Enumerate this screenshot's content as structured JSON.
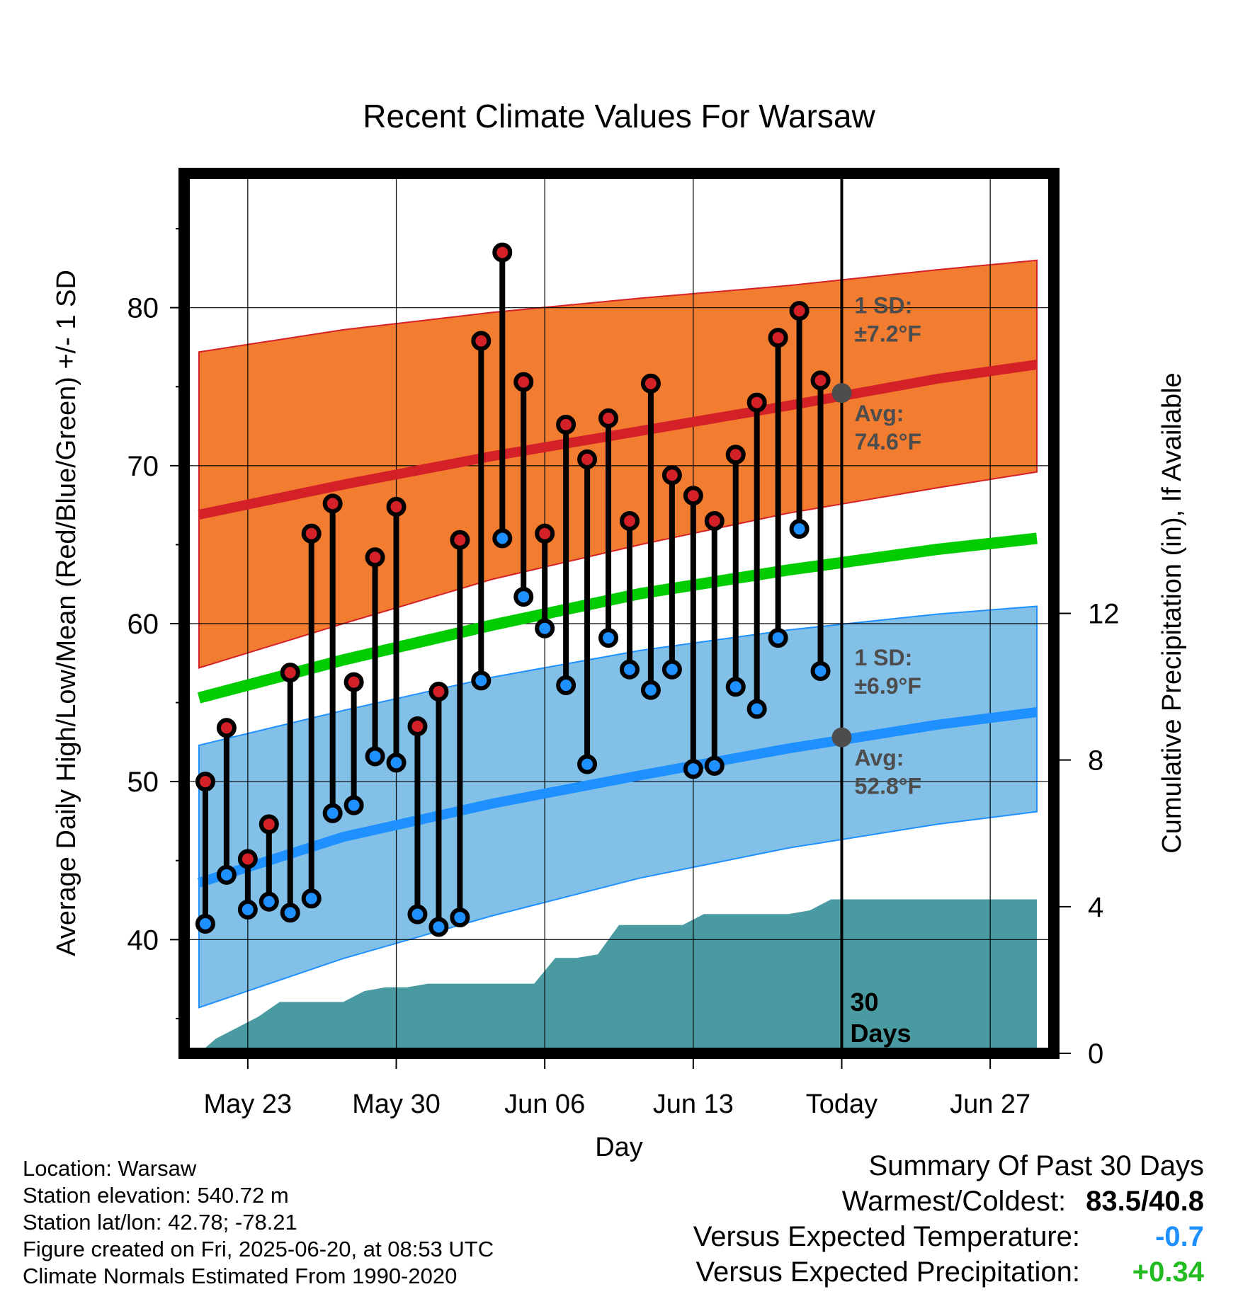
{
  "chart_data": {
    "type": "line",
    "title": "Recent Climate Values For Warsaw",
    "xlabel": "Day",
    "ylabel_left": "Average Daily High/Low/Mean (Red/Blue/Green) +/- 1 SD",
    "ylabel_right": "Cumulative Precipitation (in), If Available",
    "x_ticks": [
      {
        "day": 2,
        "label": "May 23"
      },
      {
        "day": 9,
        "label": "May 30"
      },
      {
        "day": 16,
        "label": "Jun 06"
      },
      {
        "day": 23,
        "label": "Jun 13"
      },
      {
        "day": 30,
        "label": "Today"
      },
      {
        "day": 37,
        "label": "Jun 27"
      }
    ],
    "xlim": [
      -1,
      40
    ],
    "today_day": 30,
    "y_ticks": [
      40,
      50,
      60,
      70,
      80
    ],
    "ylim": [
      32.8,
      88.5
    ],
    "y2_ticks": [
      0,
      4,
      8,
      12
    ],
    "y2lim": [
      0,
      24
    ],
    "today_label": "30 Days",
    "normal_high": {
      "days": [
        -0.3,
        6.5,
        13.5,
        20.5,
        27.5,
        34.5,
        39.2
      ],
      "mean": [
        66.9,
        68.8,
        70.6,
        72.2,
        73.8,
        75.5,
        76.4
      ],
      "upper": [
        77.2,
        78.6,
        79.7,
        80.6,
        81.4,
        82.4,
        83.0
      ],
      "lower": [
        57.2,
        60.0,
        62.8,
        65.0,
        67.0,
        68.6,
        69.6
      ],
      "label_sd": "1 SD:",
      "label_sd_value": "±7.2°F",
      "label_avg": "Avg:",
      "label_avg_value": "74.6°F",
      "today_value": 74.6
    },
    "normal_low": {
      "days": [
        -0.3,
        6.5,
        13.5,
        20.5,
        27.5,
        34.5,
        39.2
      ],
      "mean": [
        43.6,
        46.5,
        48.6,
        50.4,
        52.1,
        53.6,
        54.4
      ],
      "upper": [
        52.3,
        54.5,
        56.6,
        58.3,
        59.6,
        60.6,
        61.1
      ],
      "lower": [
        35.7,
        38.8,
        41.5,
        43.9,
        45.8,
        47.3,
        48.1
      ],
      "label_sd": "1 SD:",
      "label_sd_value": "±6.9°F",
      "label_avg": "Avg:",
      "label_avg_value": "52.8°F",
      "today_value": 52.8
    },
    "normal_mean": {
      "days": [
        -0.3,
        6.5,
        13.5,
        20.5,
        27.5,
        34.5,
        39.2
      ],
      "values": [
        55.3,
        57.7,
        59.9,
        61.9,
        63.4,
        64.7,
        65.4
      ]
    },
    "series": [
      {
        "name": "High",
        "days": [
          0,
          1,
          2,
          3,
          4,
          5,
          6,
          7,
          8,
          9,
          10,
          11,
          12,
          13,
          14,
          15,
          16,
          17,
          18,
          19,
          20,
          21,
          22,
          23,
          24,
          25,
          26,
          27,
          28,
          29
        ],
        "values": [
          50.0,
          53.4,
          45.1,
          47.3,
          56.9,
          65.7,
          67.6,
          56.3,
          64.2,
          67.4,
          53.5,
          55.7,
          65.3,
          77.9,
          83.5,
          75.3,
          65.7,
          72.6,
          70.4,
          73.0,
          66.5,
          75.2,
          69.4,
          68.1,
          66.5,
          70.7,
          74.0,
          78.1,
          79.8,
          75.4
        ]
      },
      {
        "name": "Low",
        "days": [
          0,
          1,
          2,
          3,
          4,
          5,
          6,
          7,
          8,
          9,
          10,
          11,
          12,
          13,
          14,
          15,
          16,
          17,
          18,
          19,
          20,
          21,
          22,
          23,
          24,
          25,
          26,
          27,
          28,
          29
        ],
        "values": [
          41.0,
          44.1,
          41.9,
          42.4,
          41.7,
          42.6,
          48.0,
          48.5,
          51.6,
          51.2,
          41.6,
          40.8,
          41.4,
          56.4,
          65.4,
          61.7,
          59.7,
          56.1,
          51.1,
          59.1,
          57.1,
          55.8,
          57.1,
          50.8,
          51.0,
          56.0,
          54.6,
          59.1,
          66.0,
          57.0
        ]
      }
    ],
    "precipitation": {
      "days": [
        -0.3,
        0.5,
        1.5,
        2.5,
        3.5,
        4.5,
        5.5,
        6.5,
        7.5,
        8.5,
        9.5,
        10.5,
        11.5,
        12.5,
        13.5,
        14.5,
        15.5,
        16.5,
        17.5,
        18.5,
        19.5,
        20.5,
        21.5,
        22.5,
        23.5,
        24.5,
        25.5,
        26.5,
        27.5,
        28.5,
        29.5,
        30,
        39.2
      ],
      "values": [
        0.0,
        0.4,
        0.7,
        1.0,
        1.4,
        1.4,
        1.4,
        1.4,
        1.7,
        1.8,
        1.8,
        1.9,
        1.9,
        1.9,
        1.9,
        1.9,
        1.9,
        2.6,
        2.6,
        2.7,
        3.5,
        3.5,
        3.5,
        3.5,
        3.8,
        3.8,
        3.8,
        3.8,
        3.8,
        3.9,
        4.2,
        4.2,
        4.2
      ]
    },
    "colors": {
      "high_band": "#F27D30",
      "high_line": "#D42027",
      "low_band": "#82C0E8",
      "low_line": "#1E90FF",
      "mean_line": "#00CC00",
      "precip": "#4A9AA2",
      "high_marker": "#D42027",
      "low_marker": "#1E90FF",
      "annotation": "#4D4D4D"
    }
  },
  "footer": {
    "location": "Location: Warsaw",
    "elevation": "Station elevation: 540.72 m",
    "latlon": "Station lat/lon: 42.78; -78.21",
    "created": "Figure created on Fri, 2025-06-20, at 08:53 UTC",
    "normals": "Climate Normals Estimated From 1990-2020"
  },
  "summary": {
    "title": "Summary Of Past 30 Days",
    "warmest_label": "Warmest/Coldest:",
    "warmest_value": "83.5/40.8",
    "temp_label": "Versus Expected Temperature:",
    "temp_value": "-0.7",
    "temp_color": "#1E90FF",
    "precip_label": "Versus Expected Precipitation:",
    "precip_value": "+0.34",
    "precip_color": "#22BB22"
  }
}
